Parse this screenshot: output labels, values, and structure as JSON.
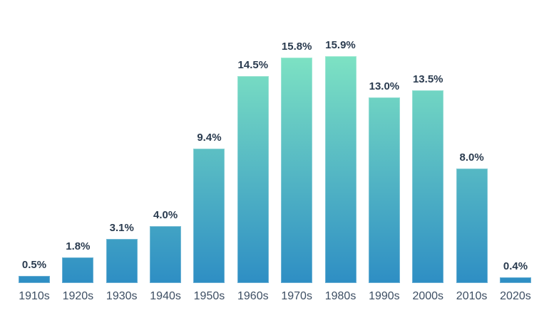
{
  "chart_data": {
    "type": "bar",
    "title": "",
    "xlabel": "",
    "ylabel": "",
    "categories": [
      "1910s",
      "1920s",
      "1930s",
      "1940s",
      "1950s",
      "1960s",
      "1970s",
      "1980s",
      "1990s",
      "2000s",
      "2010s",
      "2020s"
    ],
    "values": [
      0.5,
      1.8,
      3.1,
      4.0,
      9.4,
      14.5,
      15.8,
      15.9,
      13.0,
      13.5,
      8.0,
      0.4
    ],
    "value_labels": [
      "0.5%",
      "1.8%",
      "3.1%",
      "4.0%",
      "9.4%",
      "14.5%",
      "15.8%",
      "15.9%",
      "13.0%",
      "13.5%",
      "8.0%",
      "0.4%"
    ],
    "ylim": [
      0,
      15.9
    ],
    "grid": false,
    "legend": false,
    "axis_lines": false,
    "data_labels_position": "above-bar",
    "colors": {
      "bar_gradient_top": "#7de2c3",
      "bar_gradient_bottom": "#2e8ec4",
      "value_label": "#2a3b4f",
      "tick_label": "#3d4e63",
      "background": "#ffffff"
    }
  }
}
